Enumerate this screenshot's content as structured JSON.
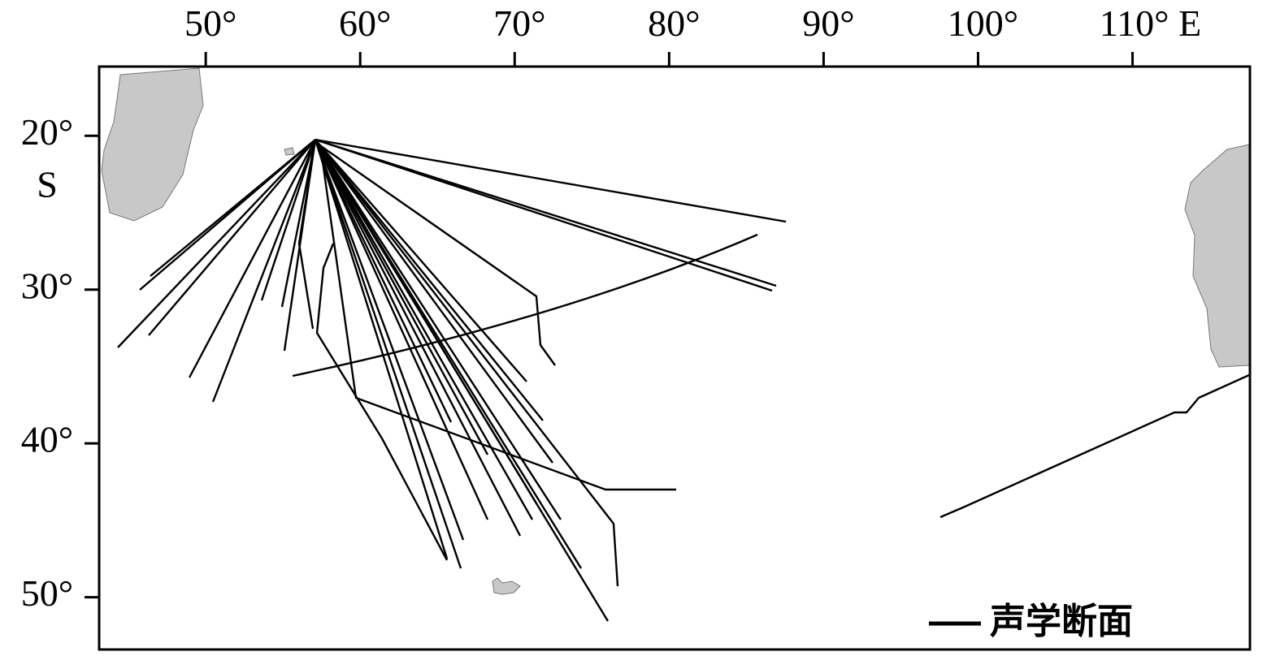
{
  "chart_data": {
    "type": "map",
    "xlim": [
      43.1,
      117.6
    ],
    "ylim": [
      -53.4,
      -15.5
    ],
    "xticks": [
      {
        "value": 50,
        "label": "50°"
      },
      {
        "value": 60,
        "label": "60°"
      },
      {
        "value": 70,
        "label": "70°"
      },
      {
        "value": 80,
        "label": "80°"
      },
      {
        "value": 90,
        "label": "90°"
      },
      {
        "value": 100,
        "label": "100°"
      },
      {
        "value": 110,
        "label": "110° E"
      }
    ],
    "yticks": [
      {
        "value": -20,
        "label": "20°"
      },
      {
        "value": -30,
        "label": "30°"
      },
      {
        "value": -40,
        "label": "40°"
      },
      {
        "value": -50,
        "label": "50°"
      }
    ],
    "y_hemisphere_label": "S",
    "series": [
      {
        "name": "声学断面",
        "color": "#000000"
      }
    ]
  }
}
